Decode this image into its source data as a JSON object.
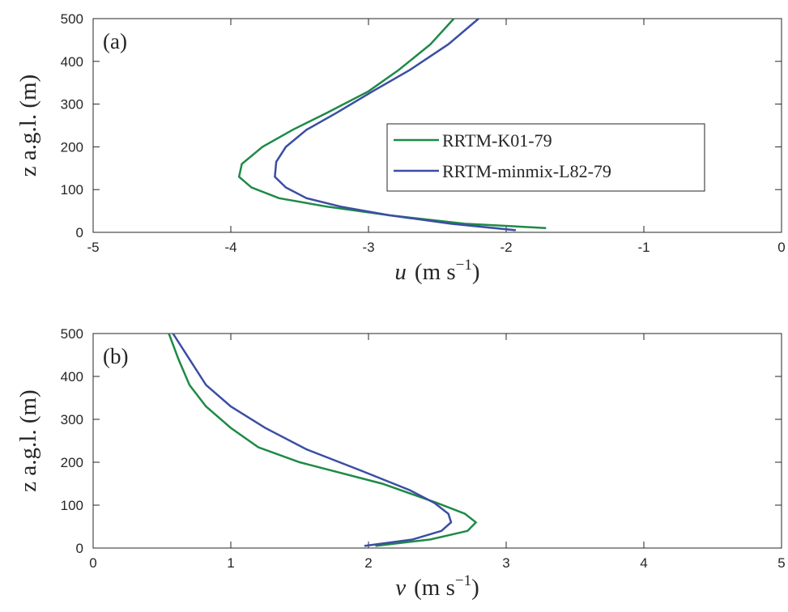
{
  "chart_data": [
    {
      "type": "line",
      "panel_label": "(a)",
      "xlabel": {
        "var": "u",
        "unit": "(m s",
        "exp": "−1",
        "close": ")"
      },
      "ylabel": "z a.g.l. (m)",
      "xlim": [
        -5,
        0
      ],
      "xticks": [
        -5,
        -4,
        -3,
        -2,
        -1,
        0
      ],
      "ylim": [
        0,
        500
      ],
      "yticks": [
        0,
        100,
        200,
        300,
        400,
        500
      ],
      "legend": "center-right",
      "series": [
        {
          "name": "RRTM-K01-79",
          "color": "#1e8a46",
          "x": [
            -1.71,
            -2.3,
            -2.85,
            -3.3,
            -3.65,
            -3.85,
            -3.94,
            -3.92,
            -3.77,
            -3.55,
            -3.3,
            -3.0,
            -2.78,
            -2.55,
            -2.38
          ],
          "y": [
            10,
            20,
            40,
            60,
            80,
            105,
            130,
            160,
            200,
            240,
            280,
            330,
            380,
            440,
            500
          ]
        },
        {
          "name": "RRTM-minmix-L82-79",
          "color": "#3b4ea3",
          "x": [
            -1.93,
            -2.4,
            -2.85,
            -3.2,
            -3.45,
            -3.6,
            -3.68,
            -3.67,
            -3.6,
            -3.45,
            -3.23,
            -2.97,
            -2.7,
            -2.42,
            -2.2
          ],
          "y": [
            5,
            20,
            40,
            60,
            80,
            105,
            130,
            165,
            200,
            240,
            280,
            330,
            380,
            440,
            500
          ]
        }
      ]
    },
    {
      "type": "line",
      "panel_label": "(b)",
      "xlabel": {
        "var": "v",
        "unit": "(m s",
        "exp": "−1",
        "close": ")"
      },
      "ylabel": "z a.g.l. (m)",
      "xlim": [
        0,
        5
      ],
      "xticks": [
        0,
        1,
        2,
        3,
        4,
        5
      ],
      "ylim": [
        0,
        500
      ],
      "yticks": [
        0,
        100,
        200,
        300,
        400,
        500
      ],
      "series": [
        {
          "color": "#1e8a46",
          "x": [
            2.05,
            2.45,
            2.72,
            2.78,
            2.7,
            2.5,
            2.1,
            1.5,
            1.2,
            1.0,
            0.82,
            0.7,
            0.62,
            0.55
          ],
          "y": [
            5,
            20,
            40,
            60,
            80,
            105,
            150,
            200,
            235,
            280,
            330,
            380,
            440,
            500
          ]
        },
        {
          "color": "#3b4ea3",
          "x": [
            1.97,
            2.32,
            2.53,
            2.6,
            2.58,
            2.48,
            2.3,
            1.95,
            1.55,
            1.25,
            1.0,
            0.82,
            0.7,
            0.58
          ],
          "y": [
            5,
            20,
            40,
            60,
            80,
            105,
            135,
            180,
            230,
            280,
            330,
            380,
            440,
            500
          ]
        }
      ]
    }
  ]
}
